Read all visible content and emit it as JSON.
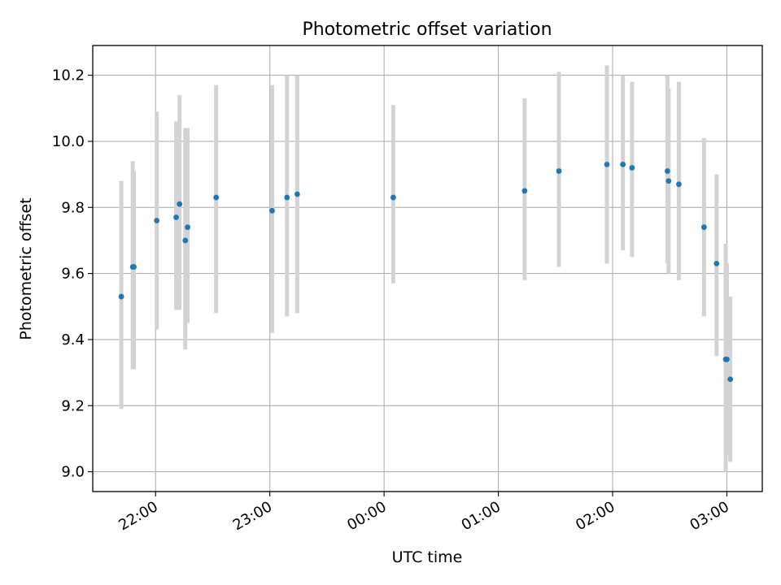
{
  "chart_data": {
    "type": "scatter",
    "title": "Photometric offset variation",
    "xlabel": "UTC time",
    "ylabel": "Photometric offset",
    "x_unit": "hours of UTC day (values >= 24 fall on the following day)",
    "xlim": [
      21.45,
      27.31
    ],
    "ylim": [
      8.94,
      10.29
    ],
    "xticks": [
      {
        "value": 22,
        "label": "22:00"
      },
      {
        "value": 23,
        "label": "23:00"
      },
      {
        "value": 24,
        "label": "00:00"
      },
      {
        "value": 25,
        "label": "01:00"
      },
      {
        "value": 26,
        "label": "02:00"
      },
      {
        "value": 27,
        "label": "03:00"
      }
    ],
    "yticks": [
      {
        "value": 9.0,
        "label": "9.0"
      },
      {
        "value": 9.2,
        "label": "9.2"
      },
      {
        "value": 9.4,
        "label": "9.4"
      },
      {
        "value": 9.6,
        "label": "9.6"
      },
      {
        "value": 9.8,
        "label": "9.8"
      },
      {
        "value": 10.0,
        "label": "10.0"
      },
      {
        "value": 10.2,
        "label": "10.2"
      }
    ],
    "grid": true,
    "point_color": "#1f77b4",
    "errorbar_color": "#d3d3d3",
    "points": [
      {
        "x": 21.7,
        "y": 9.53,
        "ylow": 9.19,
        "yhigh": 9.88
      },
      {
        "x": 21.8,
        "y": 9.62,
        "ylow": 9.31,
        "yhigh": 9.94
      },
      {
        "x": 21.81,
        "y": 9.62,
        "ylow": 9.31,
        "yhigh": 9.91
      },
      {
        "x": 22.01,
        "y": 9.76,
        "ylow": 9.43,
        "yhigh": 10.09
      },
      {
        "x": 22.18,
        "y": 9.77,
        "ylow": 9.49,
        "yhigh": 10.06
      },
      {
        "x": 22.21,
        "y": 9.81,
        "ylow": 9.49,
        "yhigh": 10.14
      },
      {
        "x": 22.26,
        "y": 9.7,
        "ylow": 9.37,
        "yhigh": 10.04
      },
      {
        "x": 22.28,
        "y": 9.74,
        "ylow": 9.45,
        "yhigh": 10.04
      },
      {
        "x": 22.53,
        "y": 9.83,
        "ylow": 9.48,
        "yhigh": 10.17
      },
      {
        "x": 23.02,
        "y": 9.79,
        "ylow": 9.42,
        "yhigh": 10.17
      },
      {
        "x": 23.15,
        "y": 9.83,
        "ylow": 9.47,
        "yhigh": 10.2
      },
      {
        "x": 23.24,
        "y": 9.84,
        "ylow": 9.48,
        "yhigh": 10.2
      },
      {
        "x": 24.08,
        "y": 9.83,
        "ylow": 9.57,
        "yhigh": 10.11
      },
      {
        "x": 25.23,
        "y": 9.85,
        "ylow": 9.58,
        "yhigh": 10.13
      },
      {
        "x": 25.53,
        "y": 9.91,
        "ylow": 9.62,
        "yhigh": 10.21
      },
      {
        "x": 25.95,
        "y": 9.93,
        "ylow": 9.63,
        "yhigh": 10.23
      },
      {
        "x": 26.09,
        "y": 9.93,
        "ylow": 9.67,
        "yhigh": 10.2
      },
      {
        "x": 26.17,
        "y": 9.92,
        "ylow": 9.65,
        "yhigh": 10.18
      },
      {
        "x": 26.48,
        "y": 9.91,
        "ylow": 9.63,
        "yhigh": 10.2
      },
      {
        "x": 26.49,
        "y": 9.88,
        "ylow": 9.6,
        "yhigh": 10.16
      },
      {
        "x": 26.58,
        "y": 9.87,
        "ylow": 9.58,
        "yhigh": 10.18
      },
      {
        "x": 26.8,
        "y": 9.74,
        "ylow": 9.47,
        "yhigh": 10.01
      },
      {
        "x": 26.91,
        "y": 9.63,
        "ylow": 9.35,
        "yhigh": 9.9
      },
      {
        "x": 26.99,
        "y": 9.34,
        "ylow": 9.0,
        "yhigh": 9.69
      },
      {
        "x": 27.0,
        "y": 9.34,
        "ylow": 9.05,
        "yhigh": 9.63
      },
      {
        "x": 27.03,
        "y": 9.28,
        "ylow": 9.03,
        "yhigh": 9.53
      }
    ]
  }
}
